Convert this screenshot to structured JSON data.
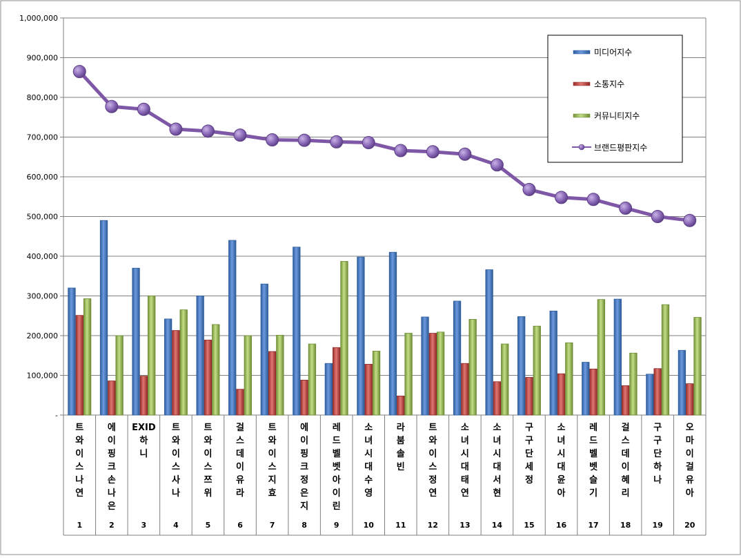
{
  "chart_data": {
    "type": "bar",
    "ylim": [
      0,
      1000000
    ],
    "yticks": [
      "-",
      "100,000",
      "200,000",
      "300,000",
      "400,000",
      "500,000",
      "600,000",
      "700,000",
      "800,000",
      "900,000",
      "1,000,000"
    ],
    "categories": [
      "트와이스나연",
      "에이핑크손나은",
      "EXID하니",
      "트와이스사나",
      "트와이스쯔위",
      "걸스데이유라",
      "트와이스지효",
      "에이핑크정은지",
      "레드벨벳아이린",
      "소녀시대수영",
      "라붐솔빈",
      "트와이스정연",
      "소녀시대태연",
      "소녀시대서현",
      "구구단세정",
      "소녀시대윤아",
      "레드벨벳슬기",
      "걸스데이혜리",
      "구구단하나",
      "오마이걸유아"
    ],
    "ranks": [
      "1",
      "2",
      "3",
      "4",
      "5",
      "6",
      "7",
      "8",
      "9",
      "10",
      "11",
      "12",
      "13",
      "14",
      "15",
      "16",
      "17",
      "18",
      "19",
      "20"
    ],
    "series": [
      {
        "name": "미디어지수",
        "kind": "bar",
        "color": "#4a7ebb",
        "values": [
          320000,
          490000,
          370000,
          242000,
          300000,
          440000,
          330000,
          423000,
          130000,
          398000,
          410000,
          247000,
          287000,
          366000,
          248000,
          262000,
          133000,
          292000,
          103000,
          163000
        ]
      },
      {
        "name": "소통지수",
        "kind": "bar",
        "color": "#c0504d",
        "values": [
          251000,
          86000,
          98000,
          213000,
          189000,
          65000,
          160000,
          88000,
          170000,
          128000,
          48000,
          206000,
          130000,
          84000,
          95000,
          104000,
          116000,
          74000,
          117000,
          79000
        ]
      },
      {
        "name": "커뮤니티지수",
        "kind": "bar",
        "color": "#9bbb59",
        "values": [
          293000,
          200000,
          300000,
          265000,
          228000,
          200000,
          201000,
          179000,
          387000,
          161000,
          206000,
          209000,
          241000,
          179000,
          224000,
          182000,
          291000,
          156000,
          278000,
          246000
        ]
      },
      {
        "name": "브랜드평판지수",
        "kind": "line",
        "color": "#7e57a6",
        "values": [
          865000,
          777000,
          770000,
          720000,
          715000,
          705000,
          693000,
          692000,
          688000,
          686000,
          666000,
          663000,
          657000,
          630000,
          568000,
          548000,
          543000,
          521000,
          500000,
          490000
        ]
      }
    ],
    "legend_position": "top-right"
  }
}
